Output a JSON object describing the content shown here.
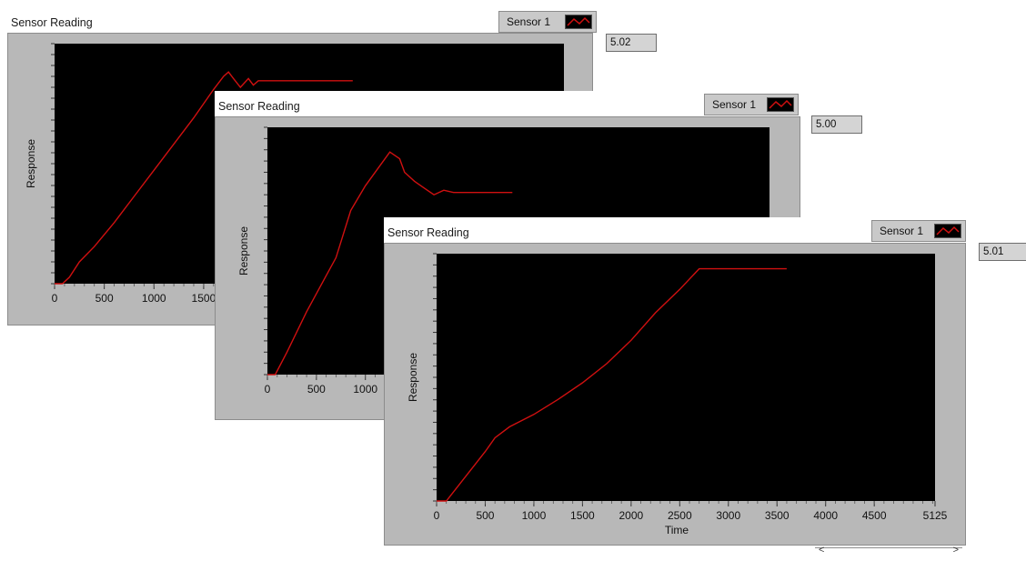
{
  "panels": [
    {
      "title": "Sensor Reading",
      "legend_label": "Sensor 1",
      "readout": "5.02",
      "y_axis_title": "Response",
      "x_axis_title": "",
      "visible_x_tick_labels": [
        "0",
        "500",
        "1000",
        "1500"
      ]
    },
    {
      "title": "Sensor Reading",
      "legend_label": "Sensor 1",
      "readout": "5.00",
      "y_axis_title": "Response",
      "x_axis_title": "",
      "visible_x_tick_labels": [
        "0",
        "500",
        "1000"
      ]
    },
    {
      "title": "Sensor Reading",
      "legend_label": "Sensor 1",
      "readout": "5.01",
      "y_axis_title": "Response",
      "x_axis_title": "Time",
      "visible_x_tick_labels": [
        "0",
        "500",
        "1000",
        "1500",
        "2000",
        "2500",
        "3000",
        "3500",
        "4000",
        "4500",
        "5125"
      ]
    }
  ],
  "colors": {
    "plot_bg": "#000000",
    "trace": "#d01010",
    "frame": "#b8b8b8"
  },
  "scroll_arrows": [
    "<",
    ">"
  ],
  "chart_data": [
    {
      "type": "line",
      "title": "Sensor Reading",
      "xlabel": "",
      "ylabel": "Response",
      "xlim": [
        0,
        5125
      ],
      "series": [
        {
          "name": "Sensor 1",
          "x": [
            0,
            80,
            150,
            250,
            400,
            600,
            800,
            1000,
            1200,
            1400,
            1600,
            1700,
            1750,
            1800,
            1870,
            1950,
            2000,
            2050,
            2100,
            2200,
            2500,
            3000
          ],
          "y": [
            0,
            0,
            3,
            10,
            17,
            28,
            40,
            52,
            64,
            76,
            89,
            95,
            97,
            94,
            90,
            94,
            91,
            93,
            93,
            93,
            93,
            93
          ]
        }
      ]
    },
    {
      "type": "line",
      "title": "Sensor Reading",
      "xlabel": "",
      "ylabel": "Response",
      "xlim": [
        0,
        5125
      ],
      "series": [
        {
          "name": "Sensor 1",
          "x": [
            0,
            80,
            200,
            400,
            600,
            700,
            850,
            1000,
            1250,
            1350,
            1400,
            1500,
            1600,
            1700,
            1800,
            1900,
            2000,
            2200,
            2500
          ],
          "y": [
            0,
            0,
            10,
            28,
            44,
            52,
            73,
            84,
            99,
            96,
            90,
            86,
            83,
            80,
            82,
            81,
            81,
            81,
            81
          ]
        }
      ]
    },
    {
      "type": "line",
      "title": "Sensor Reading",
      "xlabel": "Time",
      "ylabel": "Response",
      "xlim": [
        0,
        5125
      ],
      "series": [
        {
          "name": "Sensor 1",
          "x": [
            0,
            100,
            300,
            500,
            600,
            750,
            1000,
            1250,
            1500,
            1750,
            2000,
            2250,
            2500,
            2700,
            3000,
            3500,
            3600
          ],
          "y": [
            0,
            0,
            18,
            36,
            46,
            54,
            63,
            74,
            86,
            100,
            117,
            137,
            154,
            169,
            169,
            169,
            169
          ]
        }
      ]
    }
  ]
}
